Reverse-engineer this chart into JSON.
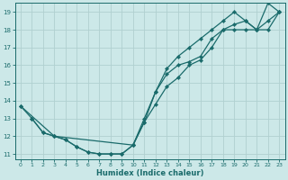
{
  "xlabel": "Humidex (Indice chaleur)",
  "xlim": [
    -0.5,
    23.5
  ],
  "ylim": [
    10.7,
    19.5
  ],
  "xticks": [
    0,
    1,
    2,
    3,
    4,
    5,
    6,
    7,
    8,
    9,
    10,
    11,
    12,
    13,
    14,
    15,
    16,
    17,
    18,
    19,
    20,
    21,
    22,
    23
  ],
  "yticks": [
    11,
    12,
    13,
    14,
    15,
    16,
    17,
    18,
    19
  ],
  "background_color": "#cce8e8",
  "line_color": "#1a6b6b",
  "grid_color": "#b0d0d0",
  "line1_x": [
    0,
    1,
    2,
    3,
    10,
    11,
    12,
    13,
    14,
    15,
    16,
    17,
    18,
    19,
    20,
    21,
    22,
    23
  ],
  "line1_y": [
    13.7,
    13.0,
    12.2,
    12.0,
    11.5,
    13.0,
    14.5,
    15.5,
    16.0,
    16.2,
    16.5,
    17.5,
    18.0,
    18.3,
    18.5,
    18.0,
    18.5,
    19.0
  ],
  "line2_x": [
    0,
    3,
    4,
    5,
    6,
    7,
    8,
    9,
    10,
    11,
    12,
    13,
    14,
    15,
    16,
    17,
    18,
    19,
    20,
    21,
    22,
    23
  ],
  "line2_y": [
    13.7,
    12.0,
    11.8,
    11.4,
    11.1,
    11.0,
    11.0,
    11.0,
    11.5,
    12.8,
    13.8,
    14.8,
    15.3,
    16.0,
    16.3,
    17.0,
    18.0,
    18.0,
    18.0,
    18.0,
    18.0,
    19.0
  ],
  "line3_x": [
    1,
    2,
    3,
    4,
    5,
    6,
    7,
    8,
    9,
    10,
    11,
    12,
    13,
    14,
    15,
    16,
    17,
    18,
    19,
    20,
    21,
    22,
    23
  ],
  "line3_y": [
    13.0,
    12.2,
    12.0,
    11.8,
    11.4,
    11.1,
    11.0,
    11.0,
    11.0,
    11.5,
    12.8,
    14.5,
    15.8,
    16.5,
    17.0,
    17.5,
    18.0,
    18.5,
    19.0,
    18.5,
    18.0,
    19.5,
    19.0
  ]
}
